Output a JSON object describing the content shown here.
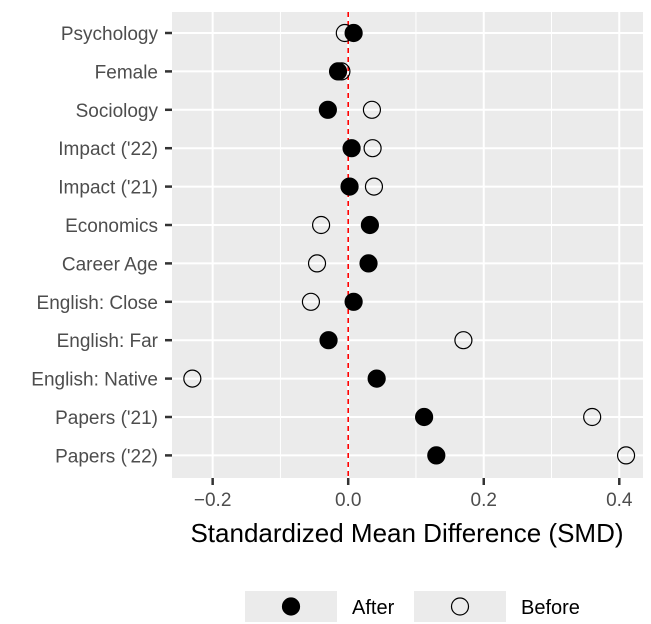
{
  "chart_data": {
    "type": "scatter",
    "title": "",
    "xlabel": "Standardized Mean Difference (SMD)",
    "ylabel": "",
    "xlim": [
      -0.26,
      0.435
    ],
    "xticks": [
      -0.2,
      0.0,
      0.2,
      0.4
    ],
    "xtick_labels": [
      "−0.2",
      "0.0",
      "0.2",
      "0.4"
    ],
    "categories": [
      "Psychology",
      "Female",
      "Sociology",
      "Impact ('22)",
      "Impact ('21)",
      "Economics",
      "Career Age",
      "English: Close",
      "English: Far",
      "English: Native",
      "Papers ('21)",
      "Papers ('22)"
    ],
    "reference_line": {
      "x": 0,
      "style": "dashed",
      "color": "#ff0000"
    },
    "grid": true,
    "legend_position": "bottom",
    "series": [
      {
        "name": "After",
        "marker": "filled-circle",
        "color": "#000000",
        "values": [
          0.008,
          -0.015,
          -0.03,
          0.005,
          0.002,
          0.032,
          0.03,
          0.008,
          -0.029,
          0.042,
          0.112,
          0.13
        ]
      },
      {
        "name": "Before",
        "marker": "open-circle",
        "color": "#000000",
        "values": [
          -0.005,
          -0.01,
          0.035,
          0.036,
          0.038,
          -0.04,
          -0.046,
          -0.055,
          0.17,
          -0.23,
          0.36,
          0.41
        ]
      }
    ]
  },
  "colors": {
    "panel": "#ebebeb",
    "grid": "#ffffff",
    "tick": "#333333",
    "label": "#4d4d4d"
  }
}
